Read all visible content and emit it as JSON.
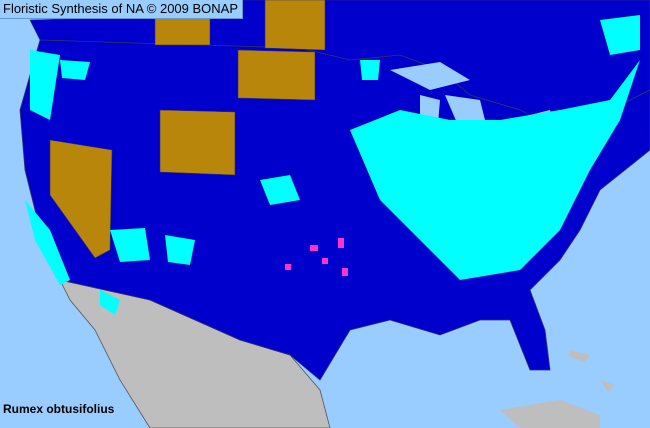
{
  "title": "Floristic Synthesis of NA © 2009 BONAP",
  "species": "Rumex obtusifolius",
  "colors": {
    "water": "#99ccff",
    "present_native_region": "#0000cc",
    "present_county": "#00ffff",
    "state_present": "#b8860b",
    "rare_or_noxious": "#ff33cc",
    "outside_area": "#bebebe",
    "borders": "#333366"
  }
}
